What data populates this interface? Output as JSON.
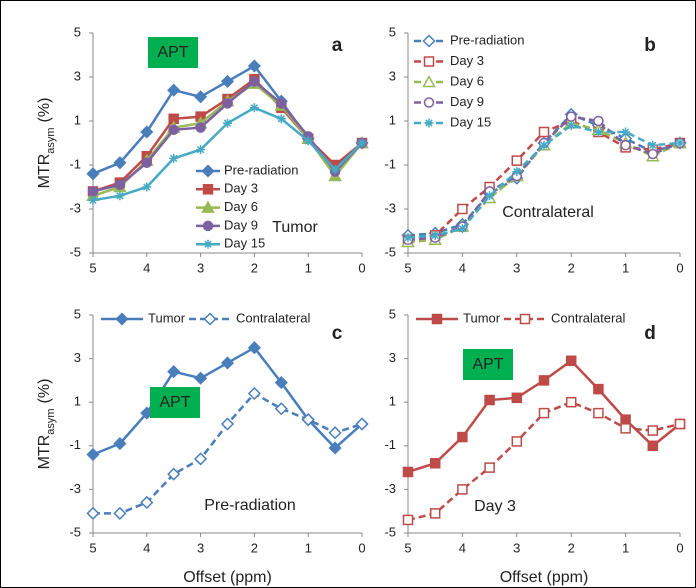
{
  "chart_data": [
    {
      "type": "line",
      "panel_label": "a",
      "apt_label": "APT",
      "note": "Tumor",
      "ylabel": {
        "main": "MTR",
        "sub": "asym",
        "unit": "(%)"
      },
      "legend": "center",
      "x": [
        5,
        4.5,
        4,
        3.5,
        3,
        2.5,
        2,
        1.5,
        1,
        0.5,
        0
      ],
      "xlim": [
        5,
        0
      ],
      "xticks": [
        5,
        4,
        3,
        2,
        1,
        0
      ],
      "ylim": [
        -5,
        5
      ],
      "yticks": [
        -5,
        -3,
        -1,
        1,
        3,
        5
      ],
      "series": [
        {
          "name": "Pre-radiation",
          "color": "#4a7ebb",
          "marker": "diamond",
          "dashed": false,
          "values": [
            -1.4,
            -0.9,
            0.5,
            2.4,
            2.1,
            2.8,
            3.5,
            1.9,
            0.2,
            -1.1,
            0
          ]
        },
        {
          "name": "Day 3",
          "color": "#be4b48",
          "marker": "square",
          "dashed": false,
          "values": [
            -2.2,
            -1.8,
            -0.6,
            1.1,
            1.2,
            2.0,
            2.9,
            1.6,
            0.2,
            -1.0,
            0
          ]
        },
        {
          "name": "Day 6",
          "color": "#98b954",
          "marker": "triangle",
          "dashed": false,
          "values": [
            -2.4,
            -2.0,
            -0.8,
            0.7,
            0.9,
            1.9,
            2.7,
            1.7,
            0.2,
            -1.5,
            0
          ]
        },
        {
          "name": "Day 9",
          "color": "#7d60a0",
          "marker": "circle",
          "dashed": false,
          "values": [
            -2.2,
            -1.9,
            -0.9,
            0.6,
            0.7,
            1.8,
            2.8,
            1.8,
            0.3,
            -1.3,
            0
          ]
        },
        {
          "name": "Day 15",
          "color": "#46aac5",
          "marker": "star",
          "dashed": false,
          "values": [
            -2.6,
            -2.4,
            -2.0,
            -0.7,
            -0.3,
            0.9,
            1.6,
            1.1,
            0.1,
            -1.2,
            0
          ]
        }
      ]
    },
    {
      "type": "line",
      "panel_label": "b",
      "note": "Contralateral",
      "legend": "upper left",
      "x": [
        5,
        4.5,
        4,
        3.5,
        3,
        2.5,
        2,
        1.5,
        1,
        0.5,
        0
      ],
      "xlim": [
        5,
        0
      ],
      "xticks": [
        5,
        4,
        3,
        2,
        1,
        0
      ],
      "ylim": [
        -5,
        5
      ],
      "yticks": [
        -5,
        -3,
        -1,
        1,
        3,
        5
      ],
      "series": [
        {
          "name": "Pre-radiation",
          "color": "#4a7ebb",
          "marker": "diamond",
          "dashed": true,
          "values": [
            -4.2,
            -4.1,
            -3.7,
            -2.3,
            -1.6,
            0.0,
            1.3,
            0.8,
            0.2,
            -0.4,
            0
          ]
        },
        {
          "name": "Day 3",
          "color": "#be4b48",
          "marker": "square",
          "dashed": true,
          "values": [
            -4.4,
            -4.2,
            -3.0,
            -2.0,
            -0.8,
            0.5,
            1.0,
            0.5,
            -0.2,
            -0.3,
            0
          ]
        },
        {
          "name": "Day 6",
          "color": "#98b954",
          "marker": "triangle",
          "dashed": true,
          "values": [
            -4.5,
            -4.4,
            -3.8,
            -2.5,
            -1.5,
            -0.1,
            0.9,
            0.6,
            0.0,
            -0.6,
            0
          ]
        },
        {
          "name": "Day 9",
          "color": "#7d60a0",
          "marker": "circle",
          "dashed": true,
          "values": [
            -4.4,
            -4.3,
            -3.8,
            -2.2,
            -1.5,
            0.0,
            1.2,
            1.0,
            -0.1,
            -0.5,
            0
          ]
        },
        {
          "name": "Day 15",
          "color": "#46aac5",
          "marker": "star",
          "dashed": true,
          "values": [
            -4.3,
            -4.2,
            -3.9,
            -2.4,
            -1.3,
            -0.1,
            0.8,
            0.5,
            0.5,
            -0.1,
            0
          ]
        }
      ]
    },
    {
      "type": "line",
      "panel_label": "c",
      "apt_label": "APT",
      "note": "Pre-radiation",
      "ylabel": {
        "main": "MTR",
        "sub": "asym",
        "unit": "(%)"
      },
      "xlabel": "Offset (ppm)",
      "legend": "top",
      "x": [
        5,
        4.5,
        4,
        3.5,
        3,
        2.5,
        2,
        1.5,
        1,
        0.5,
        0
      ],
      "xlim": [
        5,
        0
      ],
      "xticks": [
        5,
        4,
        3,
        2,
        1,
        0
      ],
      "ylim": [
        -5,
        5
      ],
      "yticks": [
        -5,
        -3,
        -1,
        1,
        3,
        5
      ],
      "series": [
        {
          "name": "Tumor",
          "color": "#4a7ebb",
          "marker": "diamond",
          "dashed": false,
          "values": [
            -1.4,
            -0.9,
            0.5,
            2.4,
            2.1,
            2.8,
            3.5,
            1.9,
            0.2,
            -1.1,
            0
          ]
        },
        {
          "name": "Contralateral",
          "color": "#4a7ebb",
          "marker": "diamond",
          "dashed": true,
          "values": [
            -4.1,
            -4.1,
            -3.6,
            -2.3,
            -1.6,
            0.0,
            1.4,
            0.7,
            0.2,
            -0.4,
            0
          ]
        }
      ]
    },
    {
      "type": "line",
      "panel_label": "d",
      "apt_label": "APT",
      "note": "Day 3",
      "xlabel": "Offset (ppm)",
      "legend": "top",
      "x": [
        5,
        4.5,
        4,
        3.5,
        3,
        2.5,
        2,
        1.5,
        1,
        0.5,
        0
      ],
      "xlim": [
        5,
        0
      ],
      "xticks": [
        5,
        4,
        3,
        2,
        1,
        0
      ],
      "ylim": [
        -5,
        5
      ],
      "yticks": [
        -5,
        -3,
        -1,
        1,
        3,
        5
      ],
      "series": [
        {
          "name": "Tumor",
          "color": "#be4b48",
          "marker": "square",
          "dashed": false,
          "values": [
            -2.2,
            -1.8,
            -0.6,
            1.1,
            1.2,
            2.0,
            2.9,
            1.6,
            0.2,
            -1.0,
            0
          ]
        },
        {
          "name": "Contralateral",
          "color": "#be4b48",
          "marker": "square",
          "dashed": true,
          "values": [
            -4.4,
            -4.1,
            -3.0,
            -2.0,
            -0.8,
            0.5,
            1.0,
            0.5,
            -0.2,
            -0.3,
            0
          ]
        }
      ]
    }
  ]
}
